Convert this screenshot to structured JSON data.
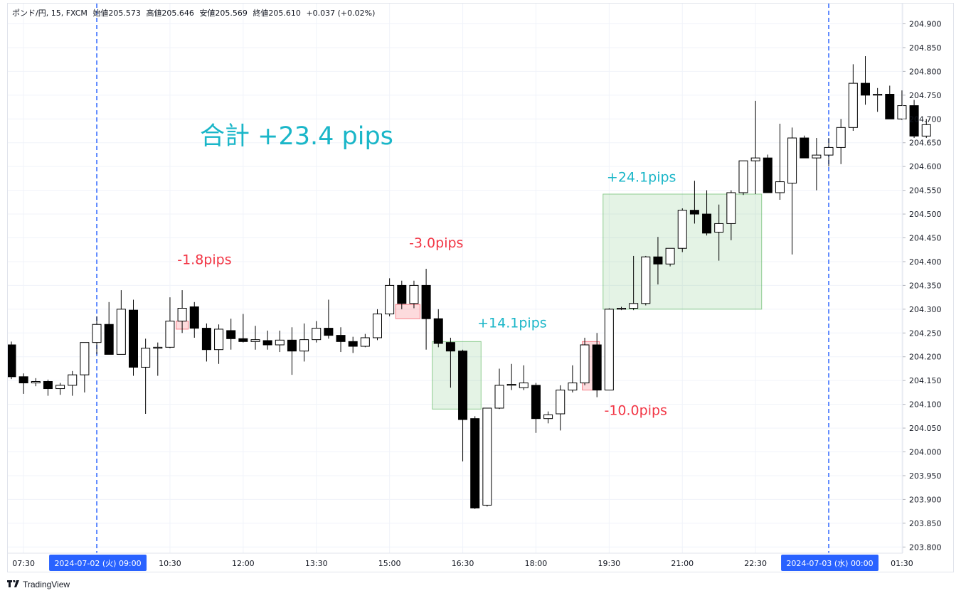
{
  "header": {
    "symbol": "ポンド/円, 15, FXCM",
    "open": "始値205.573",
    "high": "高値205.646",
    "low": "安値205.569",
    "close": "終値205.610",
    "change": "+0.037 (+0.02%)"
  },
  "branding": {
    "logo_text": "TradingView",
    "logo_icon": "tradingview-icon"
  },
  "colors": {
    "bull_body": "#ffffff",
    "bear_body": "#000000",
    "wick": "#000000",
    "profit": "#1ab6c8",
    "loss": "#f23645",
    "profit_box": "#4caf50",
    "loss_box": "#f23645",
    "session_line": "#2962ff",
    "date_badge": "#2962ff"
  },
  "chart_data": {
    "type": "candlestick",
    "title": "",
    "xlabel": "",
    "ylabel": "",
    "ylim": [
      203.78,
      204.93
    ],
    "grid": true,
    "y_ticks": [
      "204.900",
      "204.850",
      "204.800",
      "204.750",
      "204.700",
      "204.650",
      "204.600",
      "204.550",
      "204.500",
      "204.450",
      "204.400",
      "204.350",
      "204.300",
      "204.250",
      "204.200",
      "204.150",
      "204.100",
      "204.050",
      "204.000",
      "203.950",
      "203.900",
      "203.850",
      "203.800"
    ],
    "x_ticks": [
      {
        "label": "07:30",
        "bar": 1
      },
      {
        "label": "10:30",
        "bar": 13
      },
      {
        "label": "12:00",
        "bar": 19
      },
      {
        "label": "13:30",
        "bar": 25
      },
      {
        "label": "15:00",
        "bar": 31
      },
      {
        "label": "16:30",
        "bar": 37
      },
      {
        "label": "18:00",
        "bar": 43
      },
      {
        "label": "19:30",
        "bar": 49
      },
      {
        "label": "21:00",
        "bar": 55
      },
      {
        "label": "22:30",
        "bar": 61
      },
      {
        "label": "01:30",
        "bar": 73
      }
    ],
    "session_markers": [
      {
        "bar": 7,
        "label": "2024-07-02 (火)   09:00"
      },
      {
        "bar": 67,
        "label": "2024-07-03 (水)   00:00"
      }
    ],
    "summary_label": "合計 +23.4 pips",
    "candles": [
      [
        204.225,
        204.232,
        204.153,
        204.158
      ],
      [
        204.158,
        204.165,
        204.122,
        204.145
      ],
      [
        204.145,
        204.155,
        204.138,
        204.148
      ],
      [
        204.148,
        204.152,
        204.118,
        204.133
      ],
      [
        204.133,
        204.145,
        204.12,
        204.14
      ],
      [
        204.14,
        204.17,
        204.118,
        204.162
      ],
      [
        204.162,
        204.23,
        204.125,
        204.23
      ],
      [
        204.23,
        204.285,
        204.205,
        204.268
      ],
      [
        204.268,
        204.315,
        204.205,
        204.205
      ],
      [
        204.205,
        204.34,
        204.205,
        204.3
      ],
      [
        204.298,
        204.32,
        204.16,
        204.178
      ],
      [
        204.178,
        204.238,
        204.08,
        204.218
      ],
      [
        204.218,
        204.23,
        204.16,
        204.22
      ],
      [
        204.22,
        204.325,
        204.218,
        204.275
      ],
      [
        204.275,
        204.34,
        204.25,
        204.302
      ],
      [
        204.305,
        204.315,
        204.24,
        204.26
      ],
      [
        204.26,
        204.27,
        204.19,
        204.215
      ],
      [
        204.215,
        204.268,
        204.185,
        204.258
      ],
      [
        204.255,
        204.28,
        204.215,
        204.238
      ],
      [
        204.238,
        204.29,
        204.23,
        204.232
      ],
      [
        204.232,
        204.265,
        204.215,
        204.236
      ],
      [
        204.234,
        204.255,
        204.215,
        204.225
      ],
      [
        204.225,
        204.255,
        204.21,
        204.235
      ],
      [
        204.235,
        204.262,
        204.162,
        204.212
      ],
      [
        204.212,
        204.27,
        204.19,
        204.236
      ],
      [
        204.236,
        204.275,
        204.23,
        204.26
      ],
      [
        204.26,
        204.32,
        204.238,
        204.245
      ],
      [
        204.245,
        204.262,
        204.21,
        204.232
      ],
      [
        204.232,
        204.242,
        204.208,
        204.222
      ],
      [
        204.222,
        204.248,
        204.22,
        204.24
      ],
      [
        204.24,
        204.3,
        204.235,
        204.29
      ],
      [
        204.29,
        204.365,
        204.285,
        204.35
      ],
      [
        204.35,
        204.36,
        204.3,
        204.312
      ],
      [
        204.312,
        204.36,
        204.302,
        204.35
      ],
      [
        204.35,
        204.385,
        204.215,
        204.28
      ],
      [
        204.28,
        204.3,
        204.22,
        204.228
      ],
      [
        204.23,
        204.24,
        204.135,
        204.212
      ],
      [
        204.212,
        204.215,
        203.98,
        204.068
      ],
      [
        204.07,
        204.075,
        203.88,
        203.882
      ],
      [
        203.888,
        204.092,
        203.885,
        204.092
      ],
      [
        204.092,
        204.175,
        204.09,
        204.14
      ],
      [
        204.14,
        204.185,
        204.13,
        204.142
      ],
      [
        204.135,
        204.182,
        204.13,
        204.145
      ],
      [
        204.14,
        204.145,
        204.04,
        204.07
      ],
      [
        204.07,
        204.085,
        204.06,
        204.078
      ],
      [
        204.08,
        204.14,
        204.045,
        204.13
      ],
      [
        204.13,
        204.182,
        204.125,
        204.145
      ],
      [
        204.145,
        204.24,
        204.14,
        204.225
      ],
      [
        204.225,
        204.25,
        204.115,
        204.13
      ],
      [
        204.13,
        204.302,
        204.13,
        204.3
      ],
      [
        204.3,
        204.305,
        204.298,
        204.302
      ],
      [
        204.302,
        204.412,
        204.298,
        204.312
      ],
      [
        204.312,
        204.412,
        204.308,
        204.41
      ],
      [
        204.41,
        204.452,
        204.352,
        204.395
      ],
      [
        204.395,
        204.428,
        204.39,
        204.428
      ],
      [
        204.428,
        204.512,
        204.42,
        204.508
      ],
      [
        204.508,
        204.57,
        204.48,
        204.5
      ],
      [
        204.5,
        204.55,
        204.455,
        204.46
      ],
      [
        204.462,
        204.52,
        204.402,
        204.48
      ],
      [
        204.48,
        204.55,
        204.445,
        204.545
      ],
      [
        204.545,
        204.61,
        204.54,
        204.612
      ],
      [
        204.612,
        204.738,
        204.542,
        204.618
      ],
      [
        204.618,
        204.625,
        204.545,
        204.545
      ],
      [
        204.545,
        204.69,
        204.53,
        204.568
      ],
      [
        204.565,
        204.682,
        204.415,
        204.66
      ],
      [
        204.66,
        204.665,
        204.618,
        204.618
      ],
      [
        204.618,
        204.66,
        204.55,
        204.624
      ],
      [
        204.624,
        204.66,
        204.6,
        204.64
      ],
      [
        204.64,
        204.7,
        204.605,
        204.682
      ],
      [
        204.682,
        204.815,
        204.675,
        204.775
      ],
      [
        204.775,
        204.832,
        204.73,
        204.75
      ],
      [
        204.75,
        204.765,
        204.715,
        204.752
      ],
      [
        204.752,
        204.77,
        204.7,
        204.7
      ],
      [
        204.7,
        204.76,
        204.698,
        204.728
      ],
      [
        204.728,
        204.74,
        204.66,
        204.664
      ],
      [
        204.664,
        204.7,
        204.66,
        204.688
      ]
    ],
    "trades": [
      {
        "label": "-1.8pips",
        "result": "loss",
        "bar_from": 13.5,
        "bar_to": 14.5,
        "price_hi": 204.275,
        "price_lo": 204.258,
        "label_bar": 13.6,
        "label_price": 204.395
      },
      {
        "label": "-3.0pips",
        "result": "loss",
        "bar_from": 31.5,
        "bar_to": 33.5,
        "price_hi": 204.31,
        "price_lo": 204.28,
        "label_bar": 32.6,
        "label_price": 204.43
      },
      {
        "label": "+14.1pips",
        "result": "profit",
        "bar_from": 34.5,
        "bar_to": 38.5,
        "price_hi": 204.232,
        "price_lo": 204.09,
        "label_bar": 38.2,
        "label_price": 204.262
      },
      {
        "label": "-10.0pips",
        "result": "loss",
        "bar_from": 46.8,
        "bar_to": 48.2,
        "price_hi": 204.232,
        "price_lo": 204.13,
        "label_bar": 48.6,
        "label_price": 204.078
      },
      {
        "label": "+24.1pips",
        "result": "profit",
        "bar_from": 48.5,
        "bar_to": 61.5,
        "price_hi": 204.542,
        "price_lo": 204.3,
        "label_bar": 48.8,
        "label_price": 204.568
      }
    ]
  }
}
